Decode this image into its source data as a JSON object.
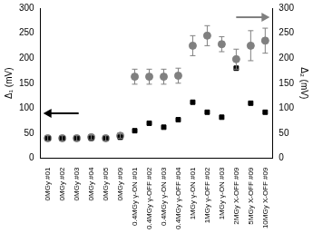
{
  "chart_data": {
    "type": "scatter",
    "categories": [
      "0MGy #01",
      "0MGy #02",
      "0MGy #03",
      "0MGy #04",
      "0MGy #05",
      "0MGy #09",
      "0.4MGy γ-ON #01",
      "0.4MGy γ-OFF #02",
      "0.4MGy γ-ON #03",
      "0.4MGy γ-OFF #04",
      "1MGy γ-ON #01",
      "1MGy γ-OFF #02",
      "1MGy γ-ON #03",
      "2MGy X-OFF #09",
      "5MGy X-OFF #09",
      "10MGy X-OFF #09"
    ],
    "y_label": "Δ₁ (mV)",
    "y2_label": "Δ₂ (mV)",
    "ylim": [
      0,
      300
    ],
    "yticks": [
      0,
      50,
      100,
      150,
      200,
      250,
      300
    ],
    "y2lim": [
      0,
      300
    ],
    "y2ticks": [
      0,
      50,
      100,
      150,
      200,
      250,
      300
    ],
    "grid": false,
    "series": [
      {
        "name": "Δ₁",
        "color": "#000000",
        "marker": "square",
        "axis": "y",
        "values": [
          40,
          40,
          40,
          40,
          40,
          42,
          55,
          70,
          62,
          77,
          112,
          92,
          82,
          180,
          110,
          92
        ]
      },
      {
        "name": "Δ₂",
        "color": "#808080",
        "marker": "circle",
        "axis": "y2",
        "values": [
          40,
          40,
          40,
          42,
          40,
          45,
          163,
          163,
          163,
          165,
          225,
          245,
          228,
          198,
          225,
          235
        ],
        "errors": [
          5,
          5,
          5,
          5,
          5,
          5,
          15,
          15,
          15,
          15,
          20,
          20,
          15,
          20,
          30,
          25
        ]
      }
    ]
  }
}
